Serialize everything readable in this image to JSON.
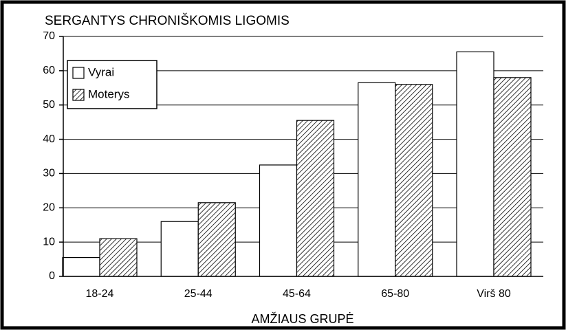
{
  "chart_data": {
    "type": "bar",
    "title": "SERGANTYS CHRONIŠKOMIS LIGOMIS",
    "x_label": "AMŽIAUS GRUPĖ",
    "categories": [
      "18-24",
      "25-44",
      "45-64",
      "65-80",
      "Virš 80"
    ],
    "series": [
      {
        "name": "Vyrai",
        "color": "#ffffff",
        "pattern": "solid",
        "values": [
          5.5,
          16,
          32.5,
          56.5,
          65.5
        ]
      },
      {
        "name": "Moterys",
        "color": "#ffffff",
        "pattern": "hatch",
        "values": [
          11,
          21.5,
          45.5,
          56,
          58
        ]
      }
    ],
    "ylim": [
      0,
      70
    ],
    "yticks": [
      0,
      10,
      20,
      30,
      40,
      50,
      60,
      70
    ],
    "grid": true,
    "legend": "upper left"
  }
}
